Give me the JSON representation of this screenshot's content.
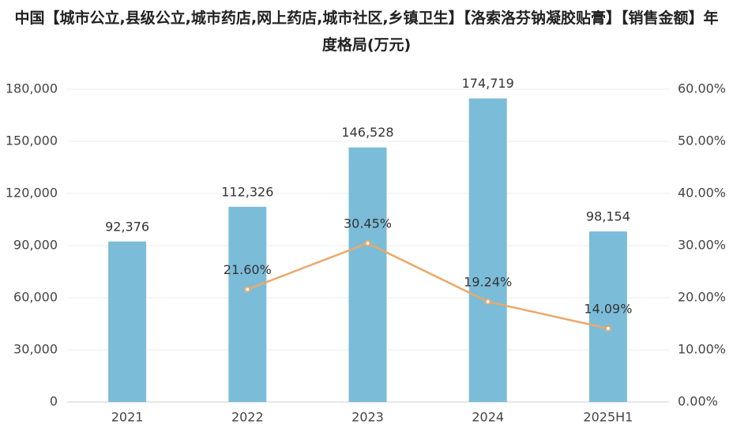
{
  "chart_data": {
    "type": "bar",
    "title": "中国【城市公立,县级公立,城市药店,网上药店,城市社区,乡镇卫生】【洛索洛芬钠凝胶贴膏】【销售金额】年度格局(万元)",
    "categories": [
      "2021",
      "2022",
      "2023",
      "2024",
      "2025H1"
    ],
    "series": [
      {
        "type": "bar",
        "color": "#7bbcd9",
        "values": [
          92376,
          112326,
          146528,
          174719,
          98154
        ],
        "value_labels": [
          "92,376",
          "112,326",
          "146,528",
          "174,719",
          "98,154"
        ]
      },
      {
        "type": "line",
        "axis": "y2",
        "color": "#e9a96b",
        "values": [
          null,
          21.6,
          30.45,
          19.24,
          14.09
        ],
        "value_labels": [
          null,
          "21.60%",
          "30.45%",
          "19.24%",
          "14.09%"
        ]
      }
    ],
    "ylim": [
      0,
      180000
    ],
    "yticks": [
      0,
      {
        "value": 30000,
        "label": "30,000"
      },
      {
        "value": 60000,
        "label": "60,000"
      },
      {
        "value": 90000,
        "label": "90,000"
      },
      {
        "value": 120000,
        "label": "120,000"
      },
      {
        "value": 150000,
        "label": "150,000"
      },
      {
        "value": 180000,
        "label": "180,000"
      }
    ],
    "y2lim": [
      0,
      60
    ],
    "y2ticks": [
      {
        "value": 0,
        "label": "0.00%"
      },
      {
        "value": 10,
        "label": "10.00%"
      },
      {
        "value": 20,
        "label": "20.00%"
      },
      {
        "value": 30,
        "label": "30.00%"
      },
      {
        "value": 40,
        "label": "40.00%"
      },
      {
        "value": 50,
        "label": "50.00%"
      },
      {
        "value": 60,
        "label": "60.00%"
      }
    ],
    "grid": true
  }
}
